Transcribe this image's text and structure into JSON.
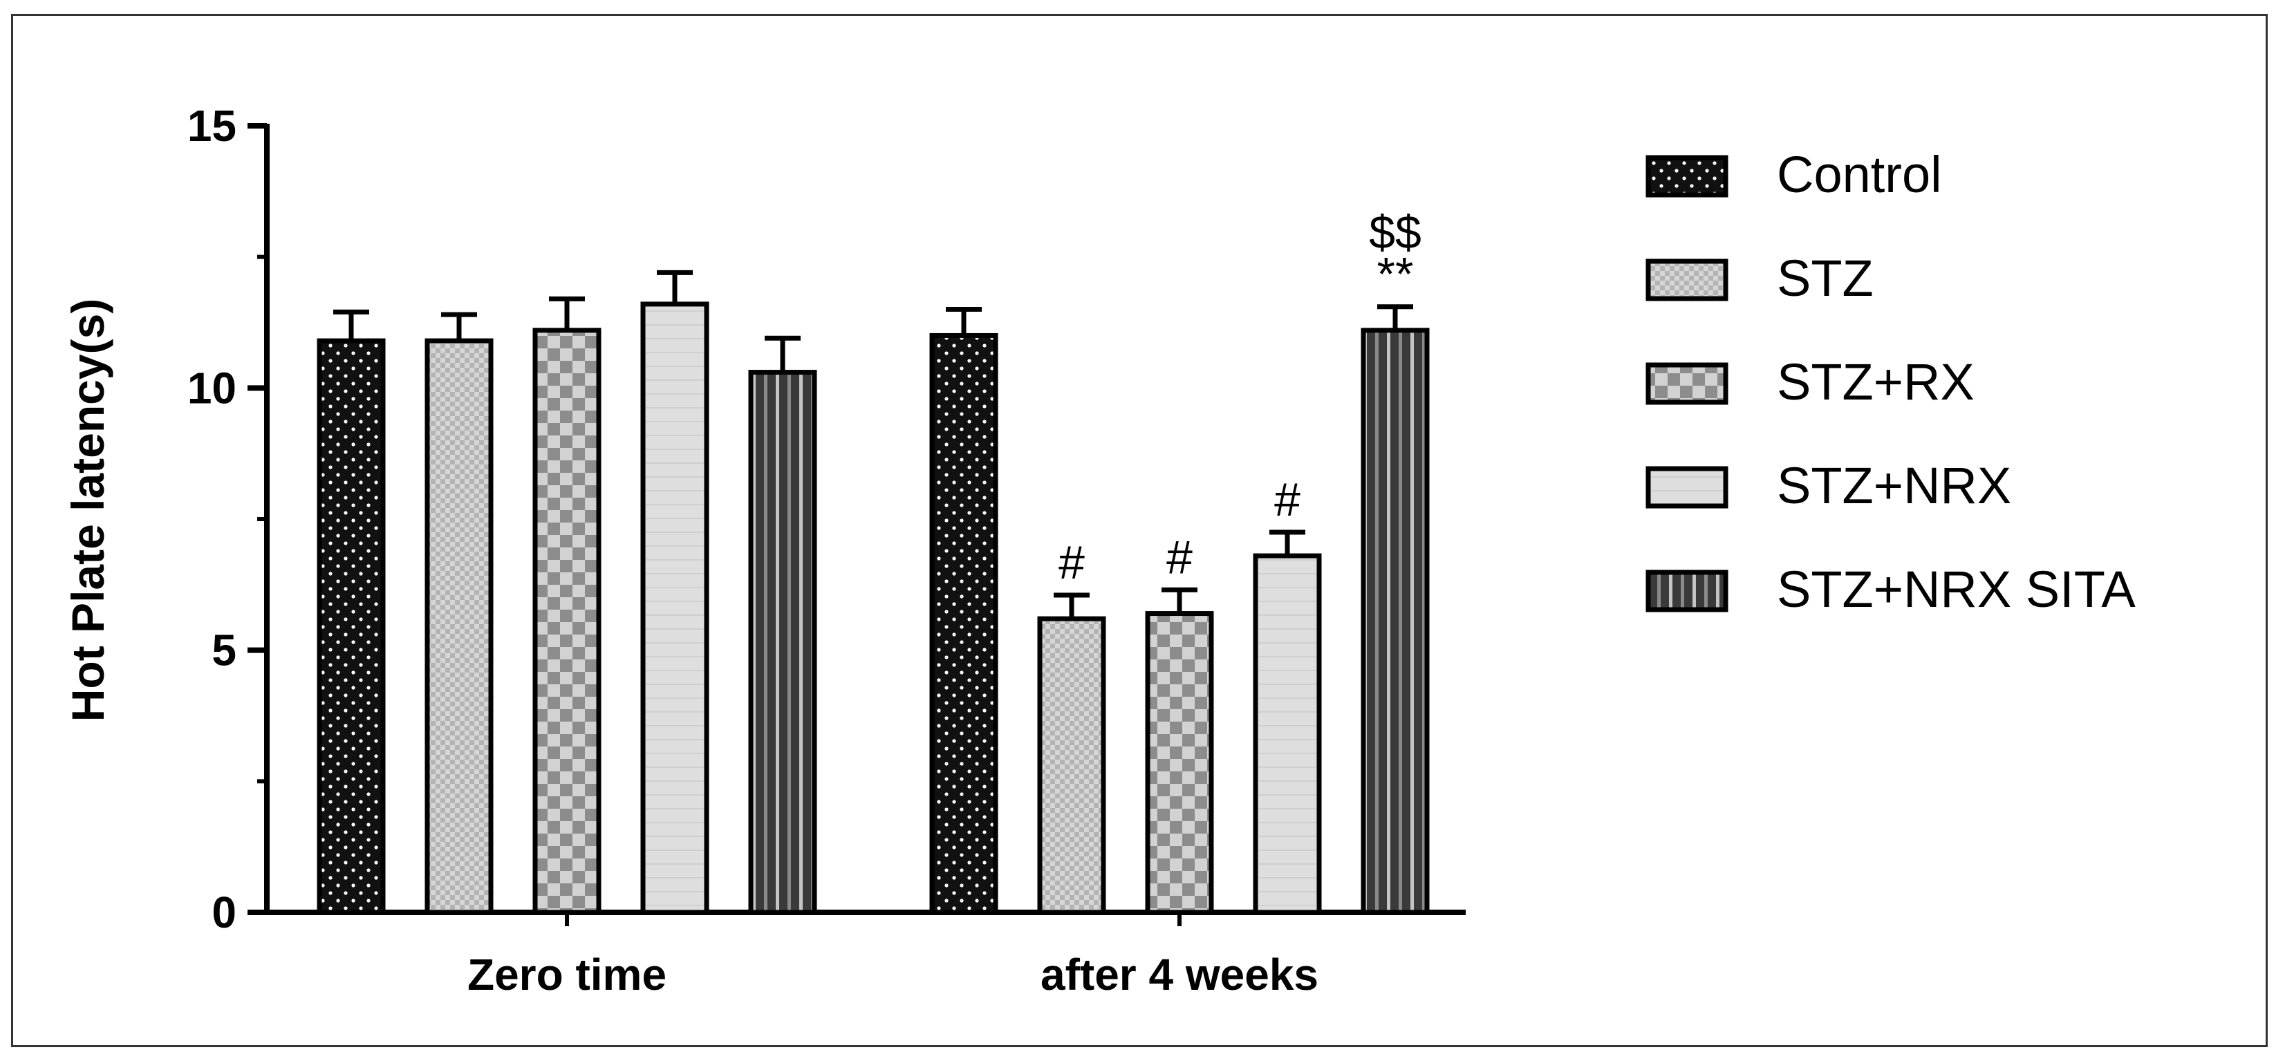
{
  "chart_data": {
    "type": "bar",
    "title": "",
    "xlabel": "",
    "ylabel": "Hot Plate latency(s)",
    "ylim": [
      0,
      15
    ],
    "yticks": [
      0,
      5,
      10,
      15
    ],
    "categories": [
      "Zero time",
      "after 4 weeks"
    ],
    "legend_position": "right",
    "series": [
      {
        "name": "Control",
        "pattern": "dots",
        "values": [
          10.9,
          11.0
        ],
        "errors": [
          0.55,
          0.5
        ],
        "annotations": [
          "",
          ""
        ]
      },
      {
        "name": "STZ",
        "pattern": "fine-check",
        "values": [
          10.9,
          5.6
        ],
        "errors": [
          0.5,
          0.45
        ],
        "annotations": [
          "",
          "#"
        ]
      },
      {
        "name": "STZ+RX",
        "pattern": "checker",
        "values": [
          11.1,
          5.7
        ],
        "errors": [
          0.6,
          0.45
        ],
        "annotations": [
          "",
          "#"
        ]
      },
      {
        "name": "STZ+NRX",
        "pattern": "light",
        "values": [
          11.6,
          6.8
        ],
        "errors": [
          0.6,
          0.45
        ],
        "annotations": [
          "",
          "#"
        ]
      },
      {
        "name": "STZ+NRX SITA",
        "pattern": "stripes",
        "values": [
          10.3,
          11.1
        ],
        "errors": [
          0.65,
          0.45
        ],
        "annotations": [
          "",
          "$$\n**"
        ]
      }
    ]
  },
  "colors": {
    "axis": "#000000",
    "frame": "#333333",
    "control_fill": "#111111",
    "stz_fill": "#c8c8c8",
    "rx_fill": "#a8a8a8",
    "nrx_fill": "#dcdcdc",
    "sita_fill": "#2e2e2e"
  }
}
